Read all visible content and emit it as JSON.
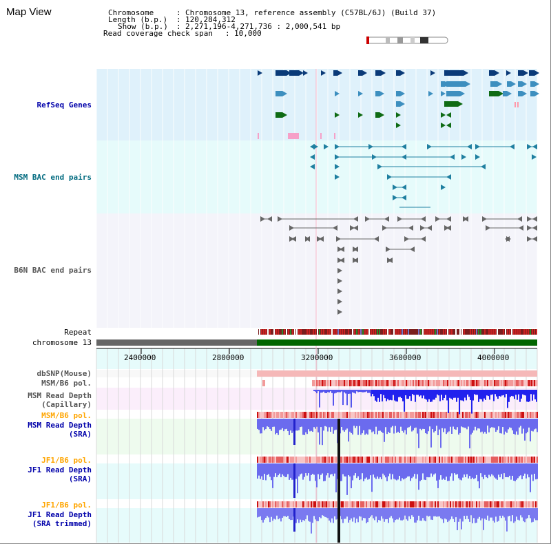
{
  "page": {
    "title": "Map View"
  },
  "header": {
    "chromosome_key": "Chromosome",
    "chromosome_val": "Chromosome 13, reference assembly (C57BL/6J) (Build 37)",
    "length_key": "Length (b.p.)",
    "length_val": "120,284,312",
    "show_key": "Show (b.p.)",
    "show_val": "2,271,196-4,271,736 : 2,000,541 bp",
    "coverage_key": "Read coverage check span",
    "coverage_val": "10,000"
  },
  "tracks": {
    "refseq": "RefSeq Genes",
    "msm_bac": "MSM BAC end pairs",
    "b6n_bac": "B6N BAC end pairs",
    "repeat": "Repeat",
    "chromosome": "chromosome 13",
    "dbsnp": "dbSNP(Mouse)",
    "msm_b6_pol_1": "MSM/B6 pol.",
    "msm_depth_cap_1": "MSM Read Depth",
    "msm_depth_cap_2": "(Capillary)",
    "msm_b6_pol_2": "MSM/B6 pol.",
    "msm_depth_sra_1": "MSM Read Depth",
    "msm_depth_sra_2": "(SRA)",
    "jf1_b6_pol_1": "JF1/B6 pol.",
    "jf1_depth_sra_1": "JF1 Read Depth",
    "jf1_depth_sra_2": "(SRA)",
    "jf1_b6_pol_2": "JF1/B6 pol.",
    "jf1_depth_trim_1": "JF1 Read Depth",
    "jf1_depth_trim_2": "(SRA trimmed)"
  },
  "ruler": {
    "ticks": [
      "2400000",
      "2800000",
      "3200000",
      "3600000",
      "4000000"
    ]
  },
  "colors": {
    "refseq_bg": "#dff1fb",
    "bac_bg": "#e6fbfb",
    "b6n_bg": "#f4f4fa",
    "label_blue": "#0000aa",
    "label_teal": "#006a7f",
    "label_gray": "#555555",
    "label_orange": "#ffa500",
    "gene_navy": "#0a3a78",
    "gene_mid": "#3d8fbf",
    "gene_green": "#0f6b14",
    "depth_blue": "#0000cc",
    "chrom_green": "#006600"
  }
}
